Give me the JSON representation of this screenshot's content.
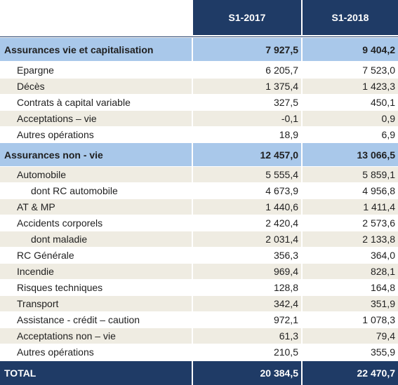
{
  "header": {
    "col1": "S1-2017",
    "col2": "S1-2018"
  },
  "rows": [
    {
      "label": "Assurances vie et capitalisation",
      "v1": "7 927,5",
      "v2": "9 404,2"
    },
    {
      "label": "Epargne",
      "v1": "6 205,7",
      "v2": "7 523,0"
    },
    {
      "label": "Décès",
      "v1": "1 375,4",
      "v2": "1 423,3"
    },
    {
      "label": "Contrats à capital variable",
      "v1": "327,5",
      "v2": "450,1"
    },
    {
      "label": "Acceptations – vie",
      "v1": "-0,1",
      "v2": "0,9"
    },
    {
      "label": "Autres opérations",
      "v1": "18,9",
      "v2": "6,9"
    },
    {
      "label": "Assurances non - vie",
      "v1": "12 457,0",
      "v2": "13 066,5"
    },
    {
      "label": "Automobile",
      "v1": "5 555,4",
      "v2": "5 859,1"
    },
    {
      "label": "dont RC automobile",
      "v1": "4 673,9",
      "v2": "4 956,8"
    },
    {
      "label": "AT & MP",
      "v1": "1 440,6",
      "v2": "1 411,4"
    },
    {
      "label": "Accidents corporels",
      "v1": "2 420,4",
      "v2": "2 573,6"
    },
    {
      "label": "dont maladie",
      "v1": "2 031,4",
      "v2": "2 133,8"
    },
    {
      "label": "RC Générale",
      "v1": "356,3",
      "v2": "364,0"
    },
    {
      "label": "Incendie",
      "v1": "969,4",
      "v2": "828,1"
    },
    {
      "label": "Risques techniques",
      "v1": "128,8",
      "v2": "164,8"
    },
    {
      "label": "Transport",
      "v1": "342,4",
      "v2": "351,9"
    },
    {
      "label": "Assistance - crédit – caution",
      "v1": "972,1",
      "v2": "1 078,3"
    },
    {
      "label": "Acceptations non – vie",
      "v1": "61,3",
      "v2": "79,4"
    },
    {
      "label": "Autres opérations",
      "v1": "210,5",
      "v2": "355,9"
    },
    {
      "label": "TOTAL",
      "v1": "20 384,5",
      "v2": "22 470,7"
    }
  ]
}
